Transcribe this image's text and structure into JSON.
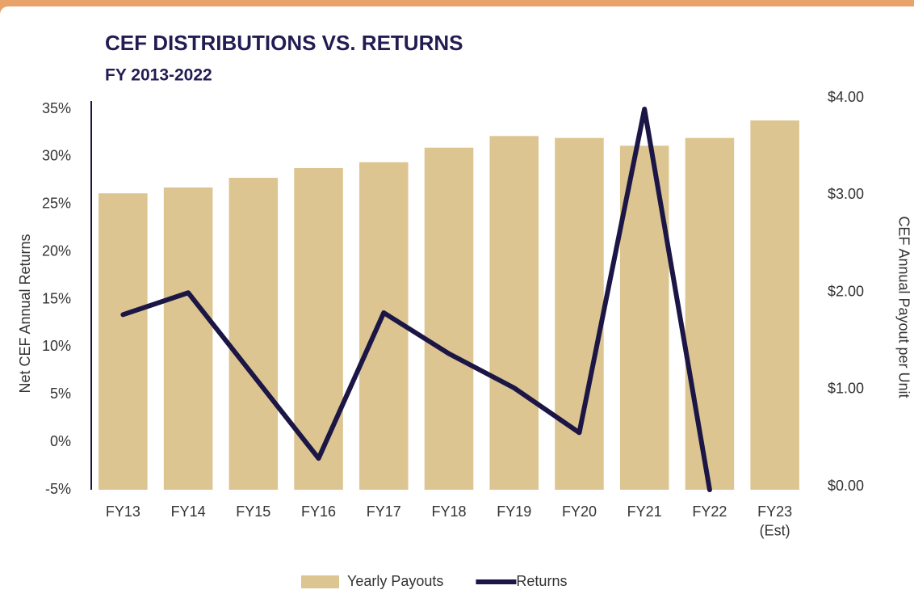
{
  "chart_data": {
    "type": "bar-line",
    "title": "CEF DISTRIBUTIONS VS. RETURNS",
    "subtitle": "FY 2013-2022",
    "y_label": "Net CEF Annual Returns",
    "y2_label": "CEF Annual Payout per Unit",
    "categories": [
      "FY13",
      "FY14",
      "FY15",
      "FY16",
      "FY17",
      "FY18",
      "FY19",
      "FY20",
      "FY21",
      "FY22",
      "FY23\n(Est)"
    ],
    "series": [
      {
        "name": "Yearly Payouts",
        "type": "bar",
        "axis": "y2",
        "color": "#dcc591",
        "values": [
          3.05,
          3.11,
          3.21,
          3.31,
          3.37,
          3.52,
          3.64,
          3.62,
          3.54,
          3.62,
          3.8
        ]
      },
      {
        "name": "Returns",
        "type": "line",
        "axis": "y",
        "color": "#1c1646",
        "values": [
          13.4,
          15.7,
          7.0,
          -1.7,
          13.6,
          9.3,
          5.7,
          1.0,
          35.0,
          -5,
          null
        ]
      }
    ],
    "ylim": [
      -5,
      35
    ],
    "yticks": [
      {
        "value": -5,
        "label": "-5%"
      },
      {
        "value": 0,
        "label": "0%"
      },
      {
        "value": 5,
        "label": "5%"
      },
      {
        "value": 10,
        "label": "10%"
      },
      {
        "value": 15,
        "label": "15%"
      },
      {
        "value": 20,
        "label": "20%"
      },
      {
        "value": 25,
        "label": "25%"
      },
      {
        "value": 30,
        "label": "30%"
      },
      {
        "value": 35,
        "label": "35%"
      }
    ],
    "y2lim": [
      0,
      4
    ],
    "y2ticks": [
      {
        "value": 0,
        "label": "$0.00"
      },
      {
        "value": 1,
        "label": "$1.00"
      },
      {
        "value": 2,
        "label": "$2.00"
      },
      {
        "value": 3,
        "label": "$3.00"
      },
      {
        "value": 4,
        "label": "$4.00"
      }
    ],
    "legend": "bottom"
  }
}
